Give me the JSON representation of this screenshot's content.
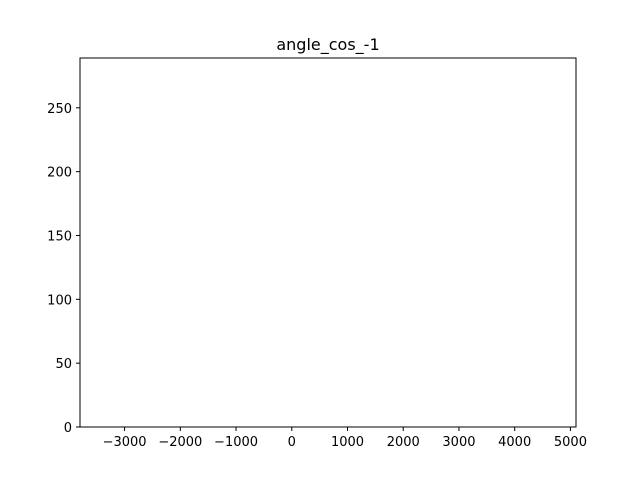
{
  "chart_data": {
    "type": "histogram",
    "title": "angle_cos_-1",
    "xlabel": "",
    "ylabel": "",
    "xlim": [
      -3800,
      5100
    ],
    "ylim": [
      0,
      289
    ],
    "x_ticks": [
      {
        "value": -3000,
        "label": "−3000"
      },
      {
        "value": -2000,
        "label": "−2000"
      },
      {
        "value": -1000,
        "label": "−1000"
      },
      {
        "value": 0,
        "label": "0"
      },
      {
        "value": 1000,
        "label": "1000"
      },
      {
        "value": 2000,
        "label": "2000"
      },
      {
        "value": 3000,
        "label": "3000"
      },
      {
        "value": 4000,
        "label": "4000"
      },
      {
        "value": 5000,
        "label": "5000"
      }
    ],
    "y_ticks": [
      {
        "value": 0,
        "label": "0"
      },
      {
        "value": 50,
        "label": "50"
      },
      {
        "value": 100,
        "label": "100"
      },
      {
        "value": 150,
        "label": "150"
      },
      {
        "value": 200,
        "label": "200"
      },
      {
        "value": 250,
        "label": "250"
      }
    ],
    "series": [],
    "grid": false,
    "legend": "none"
  }
}
